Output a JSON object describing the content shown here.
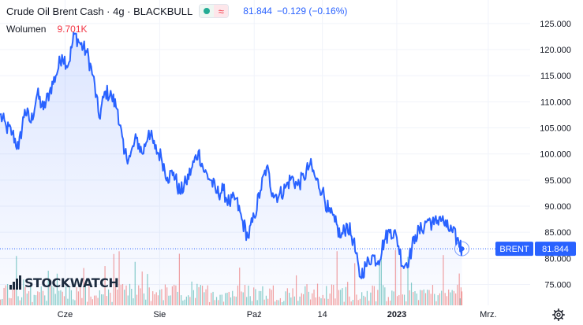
{
  "header": {
    "title": "Crude Oil Brent Cash · 4g · BLACKBULL",
    "price": "81.844",
    "change": "−0.129 (−0.16%)"
  },
  "volume": {
    "label": "Wolumen",
    "value": "9.701K"
  },
  "logo": {
    "text": "STOCKWATCH"
  },
  "price_tags": {
    "symbol": "BRENT",
    "last": "81.844"
  },
  "icons": {
    "settings": "gear-icon"
  },
  "colors": {
    "line": "#2962ff",
    "volume_up": "#26a69a",
    "volume_down": "#ef5350",
    "tag": "#2962ff"
  },
  "chart_data": {
    "type": "area",
    "title": "Crude Oil Brent Cash · 4g · BLACKBULL",
    "ylim": [
      71,
      128
    ],
    "y_ticks": [
      "75.000",
      "80.000",
      "85.000",
      "90.000",
      "95.000",
      "100.000",
      "105.000",
      "110.000",
      "115.000",
      "120.000",
      "125.000"
    ],
    "x_ticks": [
      "Cze",
      "Sie",
      "Paź",
      "14",
      "2023",
      "Mrz."
    ],
    "grid": true,
    "series": [
      {
        "name": "BRENT",
        "points": [
          [
            "2022-04-20",
            107.5
          ],
          [
            "2022-04-24",
            105.2
          ],
          [
            "2022-04-28",
            104.0
          ],
          [
            "2022-05-02",
            101.0
          ],
          [
            "2022-05-06",
            108.5
          ],
          [
            "2022-05-10",
            106.0
          ],
          [
            "2022-05-14",
            111.5
          ],
          [
            "2022-05-18",
            108.5
          ],
          [
            "2022-05-22",
            112.0
          ],
          [
            "2022-05-26",
            115.0
          ],
          [
            "2022-05-30",
            119.0
          ],
          [
            "2022-06-03",
            117.0
          ],
          [
            "2022-06-07",
            123.0
          ],
          [
            "2022-06-11",
            121.0
          ],
          [
            "2022-06-15",
            119.5
          ],
          [
            "2022-06-19",
            115.0
          ],
          [
            "2022-06-23",
            107.0
          ],
          [
            "2022-06-27",
            112.0
          ],
          [
            "2022-07-01",
            111.0
          ],
          [
            "2022-07-05",
            108.5
          ],
          [
            "2022-07-09",
            100.0
          ],
          [
            "2022-07-13",
            99.5
          ],
          [
            "2022-07-17",
            103.0
          ],
          [
            "2022-07-21",
            100.0
          ],
          [
            "2022-07-25",
            104.5
          ],
          [
            "2022-07-29",
            101.0
          ],
          [
            "2022-08-02",
            99.5
          ],
          [
            "2022-08-06",
            95.5
          ],
          [
            "2022-08-10",
            96.5
          ],
          [
            "2022-08-14",
            92.5
          ],
          [
            "2022-08-18",
            94.5
          ],
          [
            "2022-08-22",
            97.5
          ],
          [
            "2022-08-26",
            100.5
          ],
          [
            "2022-08-30",
            96.5
          ],
          [
            "2022-09-03",
            95.0
          ],
          [
            "2022-09-07",
            92.5
          ],
          [
            "2022-09-11",
            93.0
          ],
          [
            "2022-09-15",
            90.5
          ],
          [
            "2022-09-19",
            91.5
          ],
          [
            "2022-09-23",
            87.5
          ],
          [
            "2022-09-27",
            84.0
          ],
          [
            "2022-10-01",
            88.0
          ],
          [
            "2022-10-05",
            93.0
          ],
          [
            "2022-10-09",
            97.5
          ],
          [
            "2022-10-13",
            92.5
          ],
          [
            "2022-10-17",
            92.0
          ],
          [
            "2022-10-21",
            93.5
          ],
          [
            "2022-10-25",
            95.5
          ],
          [
            "2022-10-29",
            94.0
          ],
          [
            "2022-11-02",
            95.5
          ],
          [
            "2022-11-06",
            98.0
          ],
          [
            "2022-11-10",
            95.0
          ],
          [
            "2022-11-14",
            93.0
          ],
          [
            "2022-11-18",
            89.0
          ],
          [
            "2022-11-22",
            87.0
          ],
          [
            "2022-11-26",
            84.0
          ],
          [
            "2022-11-30",
            86.5
          ],
          [
            "2022-12-04",
            83.5
          ],
          [
            "2022-12-08",
            76.5
          ],
          [
            "2022-12-12",
            78.5
          ],
          [
            "2022-12-16",
            80.5
          ],
          [
            "2022-12-20",
            79.5
          ],
          [
            "2022-12-24",
            83.5
          ],
          [
            "2022-12-28",
            85.5
          ],
          [
            "2023-01-01",
            84.0
          ],
          [
            "2023-01-05",
            78.5
          ],
          [
            "2023-01-09",
            80.0
          ],
          [
            "2023-01-13",
            84.5
          ],
          [
            "2023-01-17",
            85.5
          ],
          [
            "2023-01-21",
            87.5
          ],
          [
            "2023-01-25",
            86.5
          ],
          [
            "2023-01-29",
            88.0
          ],
          [
            "2023-02-02",
            86.0
          ],
          [
            "2023-02-06",
            85.0
          ],
          [
            "2023-02-10",
            83.0
          ],
          [
            "2023-02-12",
            81.844
          ]
        ]
      }
    ]
  }
}
